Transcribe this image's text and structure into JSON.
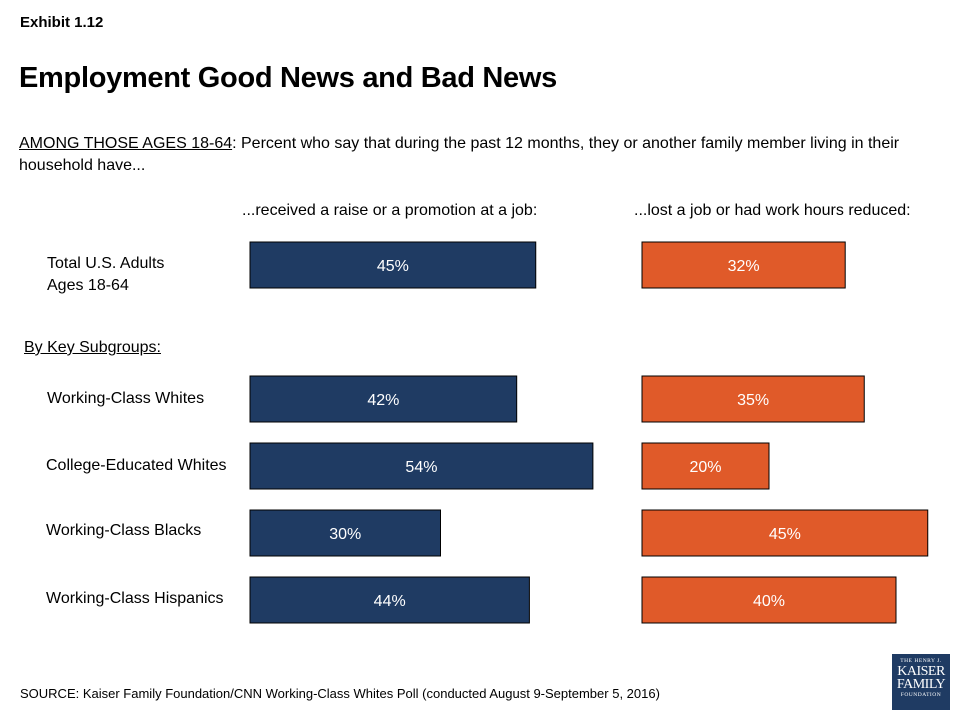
{
  "exhibit": "Exhibit 1.12",
  "title": "Employment Good News and Bad News",
  "subtitle": {
    "underlined": "AMONG THOSE AGES 18-64",
    "rest": ": Percent who say that during the past 12 months, they or another family member living in their household have..."
  },
  "subgroups_label": "By Key Subgroups:",
  "source": "SOURCE: Kaiser Family Foundation/CNN Working-Class Whites Poll (conducted August 9-September 5, 2016)",
  "logo": {
    "line1": "THE HENRY J.",
    "line2": "KAISER",
    "line3": "FAMILY",
    "line4": "FOUNDATION"
  },
  "colors": {
    "raise": "#1f3b63",
    "lost": "#e05a29"
  },
  "chart_data": {
    "type": "bar",
    "orientation": "horizontal",
    "categories": [
      "Total U.S. Adults Ages 18-64",
      "Working-Class Whites",
      "College-Educated Whites",
      "Working-Class Blacks",
      "Working-Class Hispanics"
    ],
    "category_lines": [
      [
        "Total U.S. Adults",
        "Ages 18-64"
      ],
      [
        "Working-Class Whites"
      ],
      [
        "College-Educated Whites"
      ],
      [
        "Working-Class Blacks"
      ],
      [
        "Working-Class Hispanics"
      ]
    ],
    "series": [
      {
        "name": "...received a raise or a promotion at a job:",
        "values": [
          45,
          42,
          54,
          30,
          44
        ],
        "labels": [
          "45%",
          "42%",
          "54%",
          "30%",
          "44%"
        ]
      },
      {
        "name": "...lost a job or had work hours reduced:",
        "values": [
          32,
          35,
          20,
          45,
          40
        ],
        "labels": [
          "32%",
          "35%",
          "20%",
          "45%",
          "40%"
        ]
      }
    ],
    "unit": "%",
    "grid": false
  }
}
